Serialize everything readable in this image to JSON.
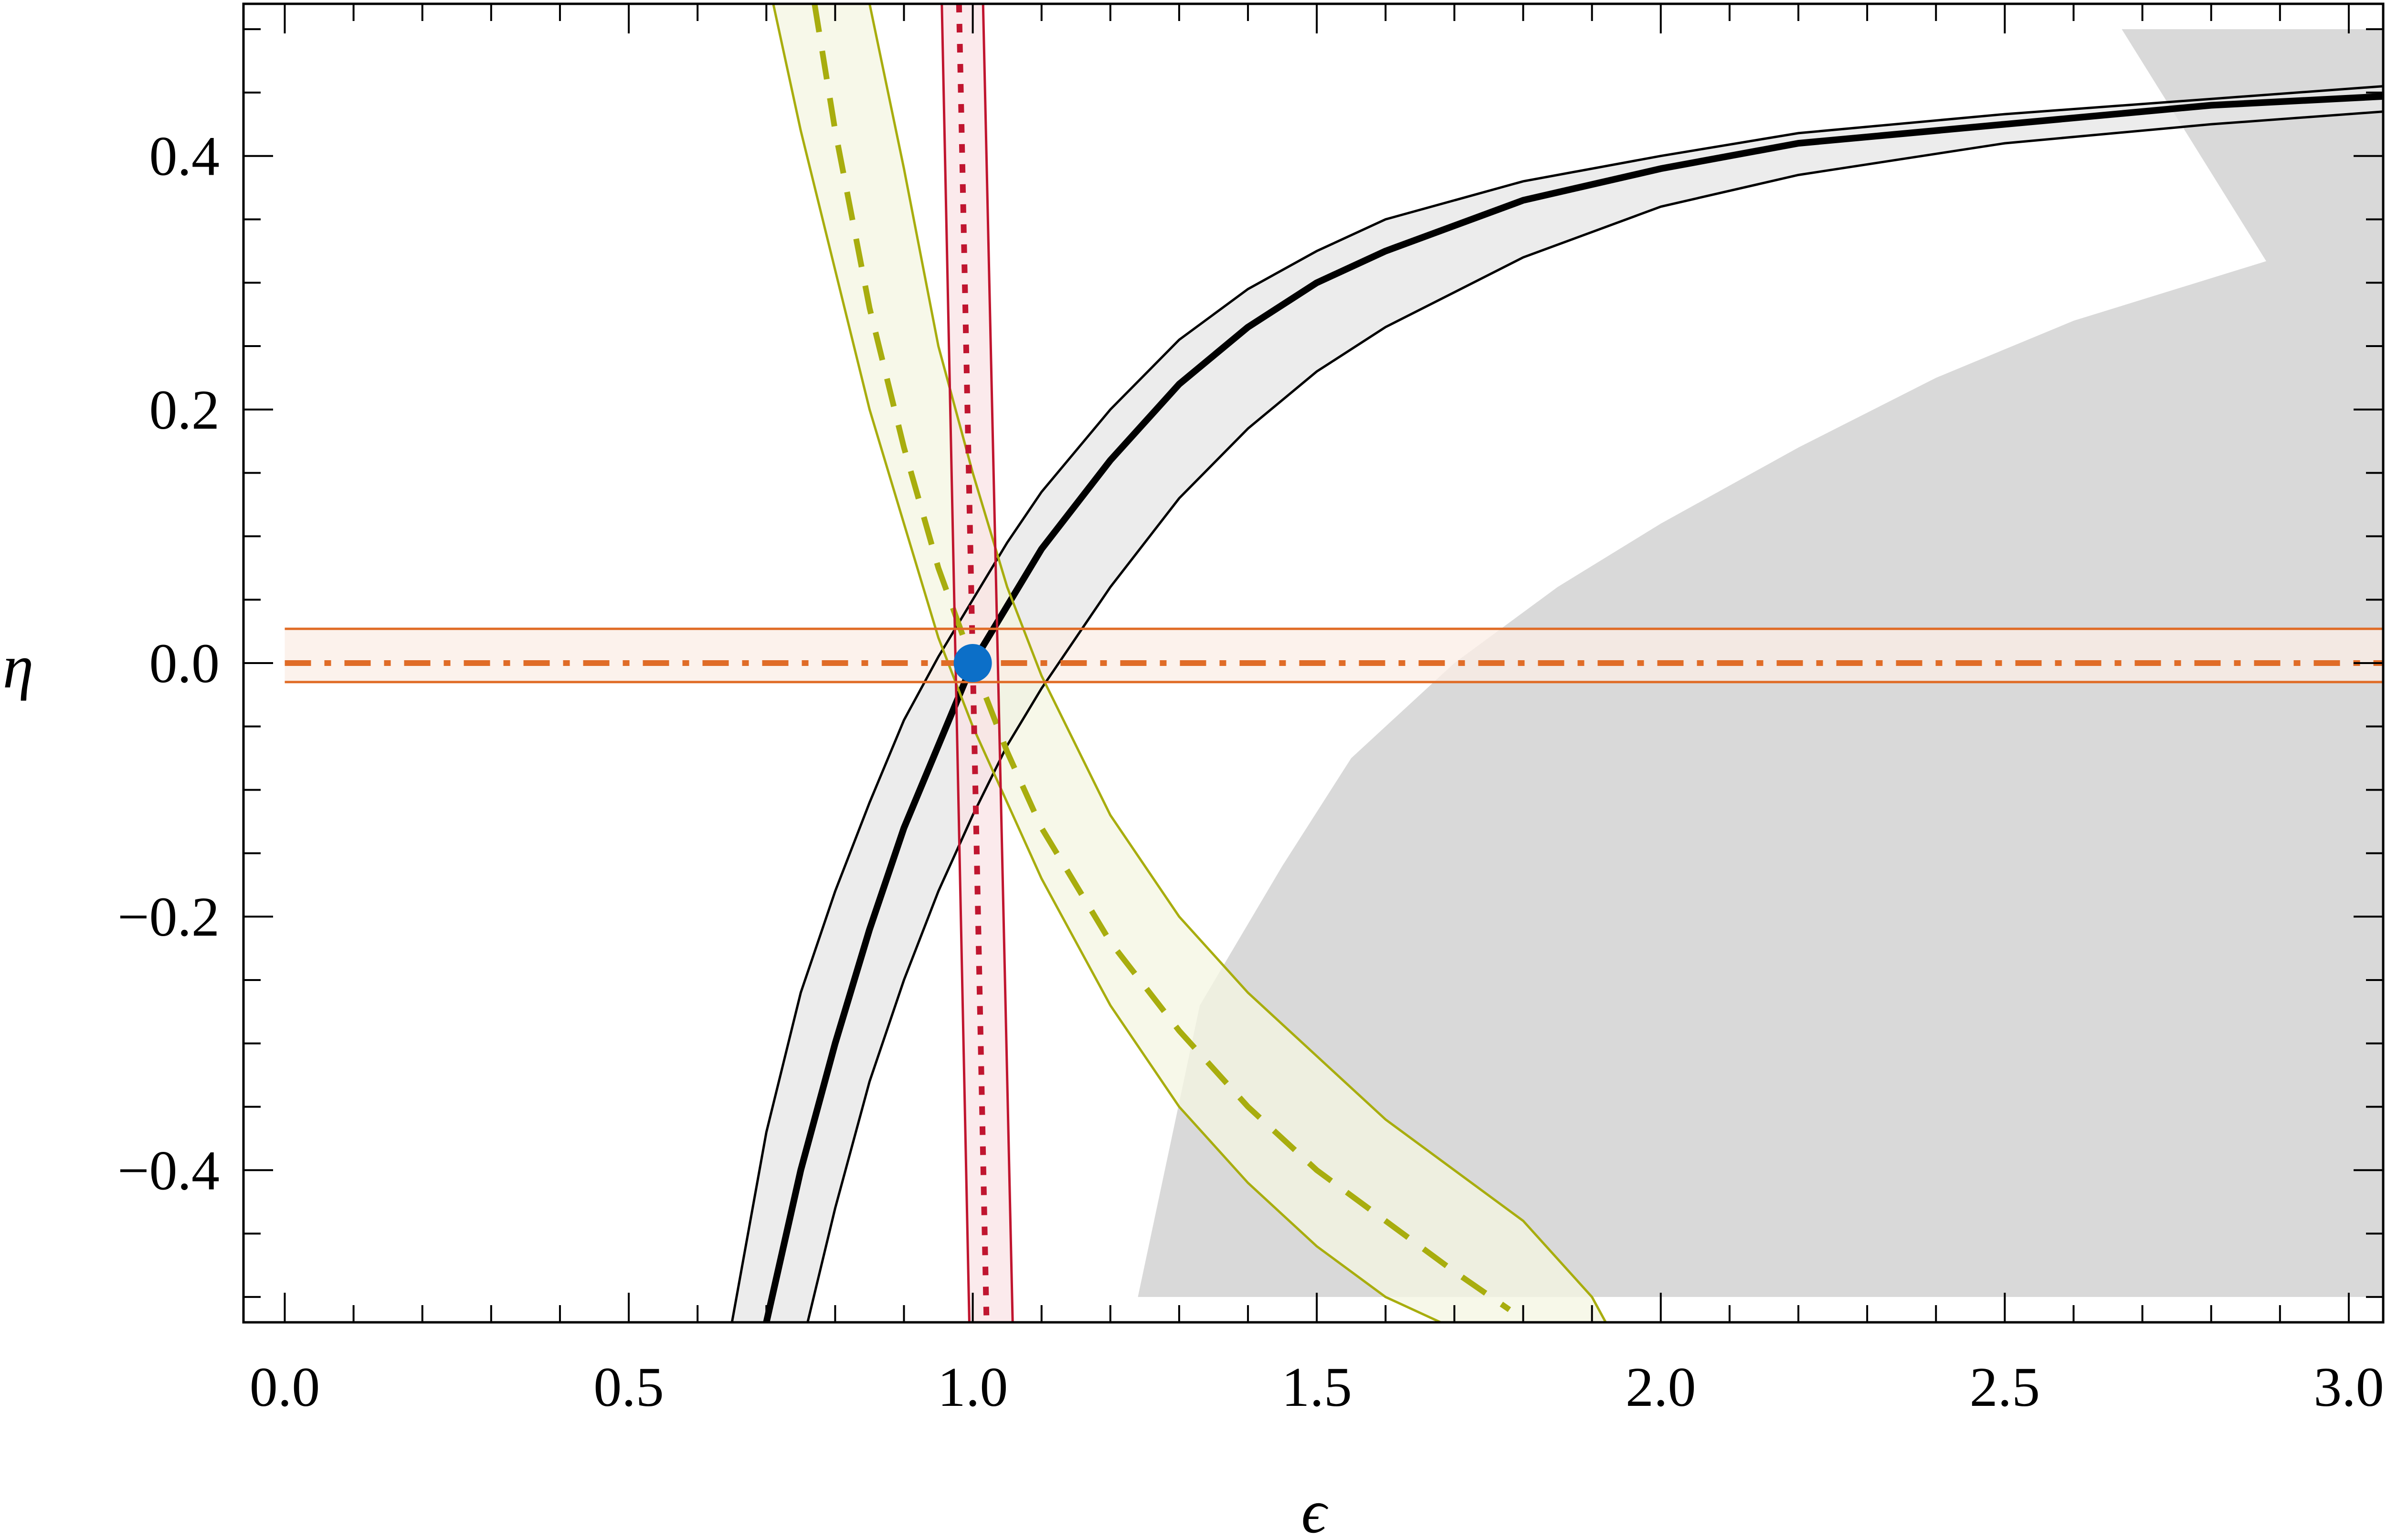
{
  "chart_data": {
    "type": "line",
    "xlabel": "ϵ",
    "ylabel": "η",
    "xlim": [
      -0.06,
      3.05
    ],
    "ylim": [
      -0.52,
      0.52
    ],
    "grid": false,
    "legend": "none",
    "x_ticks": [
      {
        "value": 0.0,
        "label": "0.0"
      },
      {
        "value": 0.5,
        "label": "0.5"
      },
      {
        "value": 1.0,
        "label": "1.0"
      },
      {
        "value": 1.5,
        "label": "1.5"
      },
      {
        "value": 2.0,
        "label": "2.0"
      },
      {
        "value": 2.5,
        "label": "2.5"
      },
      {
        "value": 3.0,
        "label": "3.0"
      }
    ],
    "y_ticks": [
      {
        "value": -0.4,
        "label": "−0.4"
      },
      {
        "value": -0.2,
        "label": "−0.2"
      },
      {
        "value": 0.0,
        "label": "0.0"
      },
      {
        "value": 0.2,
        "label": "0.2"
      },
      {
        "value": 0.4,
        "label": "0.4"
      }
    ],
    "excluded_region": {
      "color": "#d9d9d9",
      "points": [
        [
          1.24,
          -0.5
        ],
        [
          1.33,
          -0.27
        ],
        [
          1.45,
          -0.16
        ],
        [
          1.55,
          -0.075
        ],
        [
          1.7,
          0.0
        ],
        [
          1.85,
          0.06
        ],
        [
          2.0,
          0.11
        ],
        [
          2.2,
          0.17
        ],
        [
          2.4,
          0.225
        ],
        [
          2.6,
          0.27
        ],
        [
          2.88,
          0.317
        ],
        [
          2.67,
          0.5
        ],
        [
          3.05,
          0.5
        ],
        [
          3.05,
          -0.5
        ]
      ]
    },
    "curves": [
      {
        "style": "solid",
        "color": "#000000",
        "band_fill": "#e6e6e6",
        "center": [
          [
            0.7,
            -0.52
          ],
          [
            0.75,
            -0.4
          ],
          [
            0.8,
            -0.3
          ],
          [
            0.85,
            -0.21
          ],
          [
            0.9,
            -0.13
          ],
          [
            0.95,
            -0.065
          ],
          [
            1.0,
            0.0
          ],
          [
            1.05,
            0.045
          ],
          [
            1.1,
            0.09
          ],
          [
            1.2,
            0.16
          ],
          [
            1.3,
            0.22
          ],
          [
            1.4,
            0.265
          ],
          [
            1.5,
            0.3
          ],
          [
            1.6,
            0.325
          ],
          [
            1.8,
            0.365
          ],
          [
            2.0,
            0.39
          ],
          [
            2.2,
            0.41
          ],
          [
            2.5,
            0.425
          ],
          [
            2.8,
            0.44
          ],
          [
            3.05,
            0.447
          ]
        ],
        "lower": [
          [
            0.76,
            -0.52
          ],
          [
            0.8,
            -0.43
          ],
          [
            0.85,
            -0.33
          ],
          [
            0.9,
            -0.25
          ],
          [
            0.95,
            -0.18
          ],
          [
            1.0,
            -0.12
          ],
          [
            1.05,
            -0.065
          ],
          [
            1.1,
            -0.02
          ],
          [
            1.2,
            0.06
          ],
          [
            1.3,
            0.13
          ],
          [
            1.4,
            0.185
          ],
          [
            1.5,
            0.23
          ],
          [
            1.6,
            0.265
          ],
          [
            1.8,
            0.32
          ],
          [
            2.0,
            0.36
          ],
          [
            2.2,
            0.385
          ],
          [
            2.5,
            0.41
          ],
          [
            2.8,
            0.425
          ],
          [
            3.05,
            0.435
          ]
        ],
        "upper": [
          [
            0.65,
            -0.52
          ],
          [
            0.7,
            -0.37
          ],
          [
            0.75,
            -0.26
          ],
          [
            0.8,
            -0.18
          ],
          [
            0.85,
            -0.11
          ],
          [
            0.9,
            -0.045
          ],
          [
            0.95,
            0.005
          ],
          [
            1.0,
            0.05
          ],
          [
            1.05,
            0.095
          ],
          [
            1.1,
            0.135
          ],
          [
            1.2,
            0.2
          ],
          [
            1.3,
            0.255
          ],
          [
            1.4,
            0.295
          ],
          [
            1.5,
            0.325
          ],
          [
            1.6,
            0.35
          ],
          [
            1.8,
            0.38
          ],
          [
            2.0,
            0.4
          ],
          [
            2.2,
            0.418
          ],
          [
            2.5,
            0.433
          ],
          [
            2.8,
            0.445
          ],
          [
            3.05,
            0.455
          ]
        ]
      },
      {
        "style": "dashed",
        "color": "#a8ad0e",
        "band_fill": "#f4f6e1",
        "center": [
          [
            0.77,
            0.52
          ],
          [
            0.8,
            0.42
          ],
          [
            0.85,
            0.28
          ],
          [
            0.9,
            0.17
          ],
          [
            0.95,
            0.075
          ],
          [
            1.0,
            0.0
          ],
          [
            1.05,
            -0.07
          ],
          [
            1.1,
            -0.13
          ],
          [
            1.2,
            -0.22
          ],
          [
            1.3,
            -0.29
          ],
          [
            1.4,
            -0.35
          ],
          [
            1.5,
            -0.4
          ],
          [
            1.6,
            -0.44
          ],
          [
            1.7,
            -0.48
          ],
          [
            1.78,
            -0.51
          ]
        ],
        "lower": [
          [
            0.71,
            0.52
          ],
          [
            0.75,
            0.42
          ],
          [
            0.8,
            0.31
          ],
          [
            0.85,
            0.2
          ],
          [
            0.9,
            0.11
          ],
          [
            0.95,
            0.02
          ],
          [
            1.0,
            -0.05
          ],
          [
            1.05,
            -0.11
          ],
          [
            1.1,
            -0.17
          ],
          [
            1.2,
            -0.27
          ],
          [
            1.3,
            -0.35
          ],
          [
            1.4,
            -0.41
          ],
          [
            1.5,
            -0.46
          ],
          [
            1.6,
            -0.5
          ],
          [
            1.68,
            -0.52
          ]
        ],
        "upper": [
          [
            0.85,
            0.52
          ],
          [
            0.9,
            0.39
          ],
          [
            0.95,
            0.25
          ],
          [
            1.0,
            0.15
          ],
          [
            1.05,
            0.06
          ],
          [
            1.1,
            -0.01
          ],
          [
            1.2,
            -0.12
          ],
          [
            1.3,
            -0.2
          ],
          [
            1.4,
            -0.26
          ],
          [
            1.5,
            -0.31
          ],
          [
            1.6,
            -0.36
          ],
          [
            1.7,
            -0.4
          ],
          [
            1.8,
            -0.44
          ],
          [
            1.9,
            -0.5
          ],
          [
            1.92,
            -0.52
          ]
        ]
      },
      {
        "style": "dotted",
        "color": "#c0152f",
        "band_fill": "#f9e3e6",
        "center": [
          [
            0.98,
            0.52
          ],
          [
            1.02,
            -0.52
          ]
        ],
        "lower": [
          [
            0.955,
            0.52
          ],
          [
            0.995,
            -0.52
          ]
        ],
        "upper": [
          [
            1.015,
            0.52
          ],
          [
            1.058,
            -0.52
          ]
        ]
      },
      {
        "style": "dashdot",
        "color": "#e06c27",
        "band_fill": "#fbeee6",
        "center": [
          [
            0.0,
            0.0
          ],
          [
            3.05,
            0.0
          ]
        ],
        "lower": [
          [
            0.0,
            -0.015
          ],
          [
            3.05,
            -0.015
          ]
        ],
        "upper": [
          [
            0.0,
            0.027
          ],
          [
            3.05,
            0.027
          ]
        ]
      }
    ],
    "points": [
      {
        "x": 1.0,
        "y": 0.0,
        "color": "#0c6fc8"
      }
    ]
  }
}
